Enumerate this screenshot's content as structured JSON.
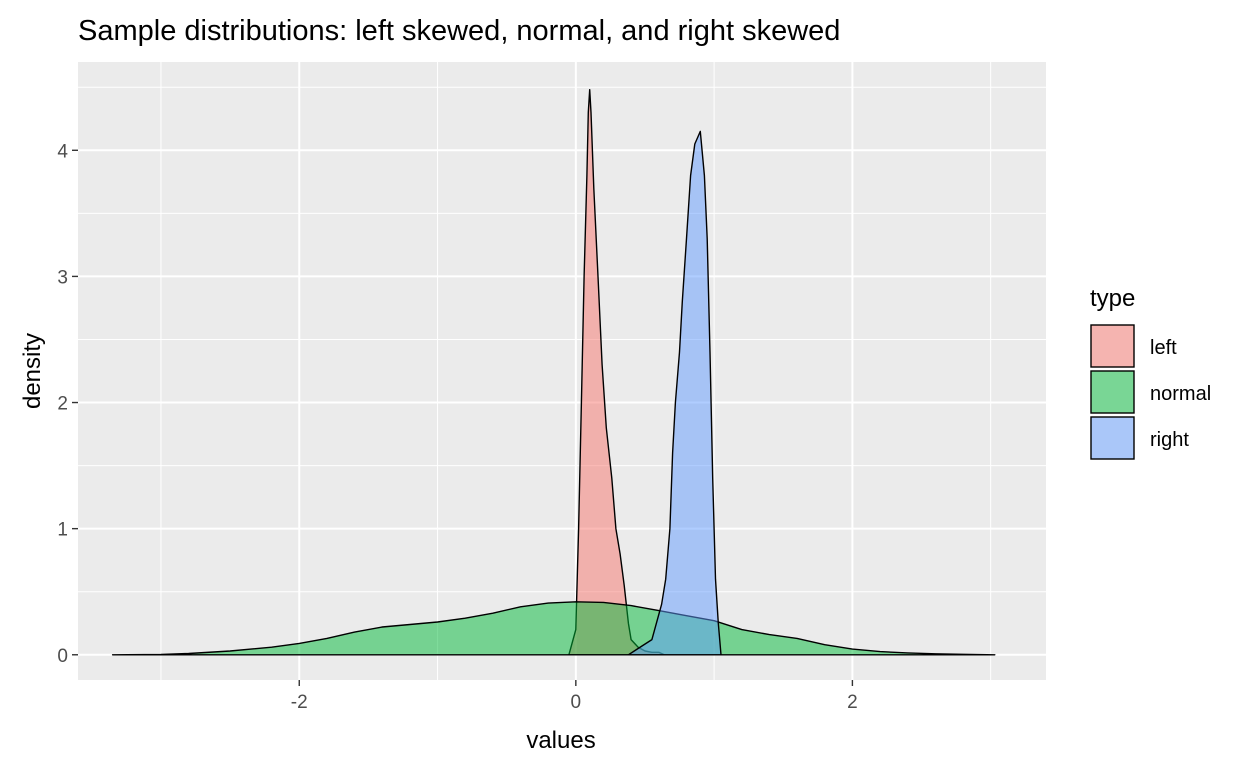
{
  "chart_data": {
    "type": "area",
    "title": "Sample distributions: left skewed, normal, and right skewed",
    "xlabel": "values",
    "ylabel": "density",
    "xlim": [
      -3.6,
      3.4
    ],
    "ylim": [
      -0.2,
      4.7
    ],
    "x_ticks": [
      -2,
      0,
      2
    ],
    "x_tick_labels": [
      "-2",
      "0",
      "2"
    ],
    "x_minor_ticks": [
      -3,
      -1,
      1,
      3
    ],
    "y_ticks": [
      0,
      1,
      2,
      3,
      4
    ],
    "y_tick_labels": [
      "0",
      "1",
      "2",
      "3",
      "4"
    ],
    "y_minor_ticks": [
      0.5,
      1.5,
      2.5,
      3.5,
      4.5
    ],
    "grid": true,
    "panel_background": "#ebebeb",
    "legend": {
      "title": "type",
      "position": "right",
      "entries": [
        "left",
        "normal",
        "right"
      ]
    },
    "series": [
      {
        "name": "left",
        "fill": "#f8766d",
        "points": [
          [
            -0.05,
            0.0
          ],
          [
            0.0,
            0.2
          ],
          [
            0.02,
            1.0
          ],
          [
            0.04,
            2.0
          ],
          [
            0.06,
            3.0
          ],
          [
            0.08,
            3.8
          ],
          [
            0.09,
            4.3
          ],
          [
            0.1,
            4.48
          ],
          [
            0.11,
            4.3
          ],
          [
            0.13,
            3.7
          ],
          [
            0.16,
            3.0
          ],
          [
            0.19,
            2.3
          ],
          [
            0.22,
            1.8
          ],
          [
            0.26,
            1.4
          ],
          [
            0.29,
            1.0
          ],
          [
            0.32,
            0.8
          ],
          [
            0.35,
            0.55
          ],
          [
            0.38,
            0.25
          ],
          [
            0.4,
            0.12
          ],
          [
            0.45,
            0.06
          ],
          [
            0.5,
            0.03
          ],
          [
            0.55,
            0.02
          ],
          [
            0.6,
            0.02
          ],
          [
            0.64,
            0.0
          ]
        ]
      },
      {
        "name": "normal",
        "fill": "#00ba38",
        "points": [
          [
            -3.35,
            0.0
          ],
          [
            -3.0,
            0.003
          ],
          [
            -2.8,
            0.01
          ],
          [
            -2.5,
            0.03
          ],
          [
            -2.2,
            0.06
          ],
          [
            -2.0,
            0.09
          ],
          [
            -1.8,
            0.13
          ],
          [
            -1.6,
            0.18
          ],
          [
            -1.4,
            0.22
          ],
          [
            -1.2,
            0.24
          ],
          [
            -1.0,
            0.26
          ],
          [
            -0.8,
            0.29
          ],
          [
            -0.6,
            0.33
          ],
          [
            -0.4,
            0.38
          ],
          [
            -0.2,
            0.41
          ],
          [
            0.0,
            0.42
          ],
          [
            0.2,
            0.415
          ],
          [
            0.4,
            0.39
          ],
          [
            0.6,
            0.35
          ],
          [
            0.8,
            0.31
          ],
          [
            1.0,
            0.27
          ],
          [
            1.2,
            0.2
          ],
          [
            1.4,
            0.16
          ],
          [
            1.6,
            0.13
          ],
          [
            1.8,
            0.08
          ],
          [
            2.0,
            0.045
          ],
          [
            2.2,
            0.025
          ],
          [
            2.4,
            0.015
          ],
          [
            2.6,
            0.008
          ],
          [
            2.8,
            0.004
          ],
          [
            3.03,
            0.0
          ]
        ]
      },
      {
        "name": "right",
        "fill": "#619cff",
        "points": [
          [
            0.38,
            0.0
          ],
          [
            0.45,
            0.05
          ],
          [
            0.55,
            0.12
          ],
          [
            0.62,
            0.4
          ],
          [
            0.65,
            0.6
          ],
          [
            0.68,
            1.0
          ],
          [
            0.7,
            1.6
          ],
          [
            0.72,
            2.0
          ],
          [
            0.75,
            2.4
          ],
          [
            0.77,
            2.8
          ],
          [
            0.8,
            3.3
          ],
          [
            0.83,
            3.8
          ],
          [
            0.86,
            4.05
          ],
          [
            0.9,
            4.15
          ],
          [
            0.93,
            3.8
          ],
          [
            0.95,
            3.3
          ],
          [
            0.97,
            2.4
          ],
          [
            0.99,
            1.4
          ],
          [
            1.01,
            0.6
          ],
          [
            1.03,
            0.25
          ],
          [
            1.05,
            0.0
          ]
        ]
      }
    ]
  }
}
